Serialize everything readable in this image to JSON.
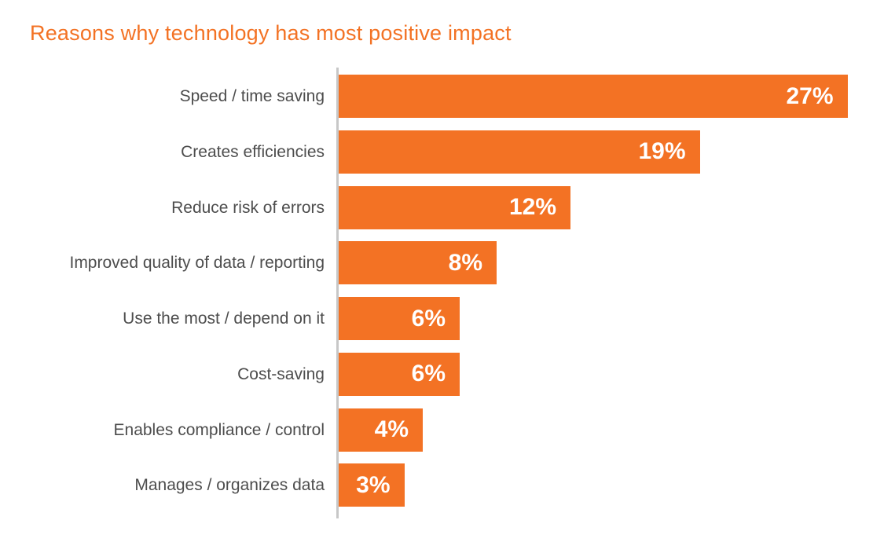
{
  "title": "Reasons why technology has most positive impact",
  "chart_data": {
    "type": "bar",
    "orientation": "horizontal",
    "title": "Reasons why technology has most positive impact",
    "categories": [
      "Speed / time saving",
      "Creates efficiencies",
      "Reduce risk of errors",
      "Improved quality of data / reporting",
      "Use the most / depend on it",
      "Cost-saving",
      "Enables compliance / control",
      "Manages / organizes data"
    ],
    "values": [
      27,
      19,
      12,
      8,
      6,
      6,
      4,
      3
    ],
    "value_labels": [
      "27%",
      "19%",
      "12%",
      "8%",
      "6%",
      "6%",
      "4%",
      "3%"
    ],
    "xlabel": "",
    "ylabel": "",
    "xlim": [
      0,
      27
    ],
    "grid": false,
    "legend": false,
    "value_label_position": "inside-right",
    "colors": {
      "bar": "#F37224",
      "title_text": "#F37224",
      "category_label": "#4D4D4D",
      "value_label": "#FFFFFF",
      "axis_line": "#C7C7C7",
      "background": "#FFFFFF"
    }
  }
}
